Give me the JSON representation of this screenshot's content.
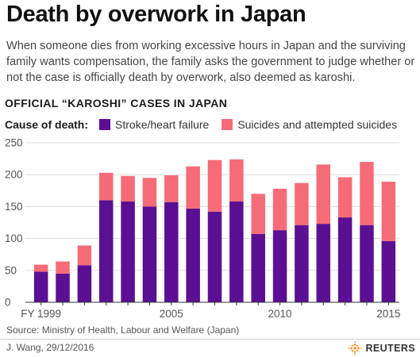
{
  "header": {
    "title": "Death by overwork in Japan",
    "description": "When someone dies from working excessive hours in Japan and the surviving family wants compensation, the family asks the government to judge whether or not the case is officially death by overwork, also deemed as karoshi."
  },
  "colors": {
    "stroke": "#5b0f92",
    "suicide": "#f66b78",
    "axis": "#555555",
    "grid": "#dddddd"
  },
  "legend": {
    "title": "Cause of death:",
    "items": [
      "Stroke/heart failure",
      "Suicides and attempted suicides"
    ]
  },
  "chart_data": {
    "type": "bar",
    "stacked": true,
    "title": "OFFICIAL “KAROSHI” CASES IN JAPAN",
    "x": [
      1999,
      2000,
      2001,
      2002,
      2003,
      2004,
      2005,
      2006,
      2007,
      2008,
      2009,
      2010,
      2011,
      2012,
      2013,
      2014,
      2015
    ],
    "x_tick_labels": [
      {
        "x": 1999,
        "label": "FY 1999"
      },
      {
        "x": 2005,
        "label": "2005"
      },
      {
        "x": 2010,
        "label": "2010"
      },
      {
        "x": 2015,
        "label": "2015"
      }
    ],
    "series": [
      {
        "name": "Stroke/heart failure",
        "values": [
          48,
          45,
          58,
          160,
          158,
          150,
          157,
          147,
          142,
          158,
          107,
          113,
          121,
          123,
          133,
          121,
          96
        ]
      },
      {
        "name": "Suicides and attempted suicides",
        "values": [
          11,
          19,
          31,
          43,
          40,
          45,
          42,
          66,
          81,
          66,
          63,
          65,
          66,
          93,
          63,
          99,
          93
        ]
      }
    ],
    "y_ticks": [
      0,
      50,
      100,
      150,
      200,
      250
    ],
    "ylim": [
      0,
      250
    ],
    "grid": true,
    "xlabel": "",
    "ylabel": ""
  },
  "footer": {
    "source": "Source: Ministry of Health, Labour and Welfare (Japan)",
    "byline": "J. Wang,  29/12/2016",
    "logo_text": "REUTERS"
  }
}
